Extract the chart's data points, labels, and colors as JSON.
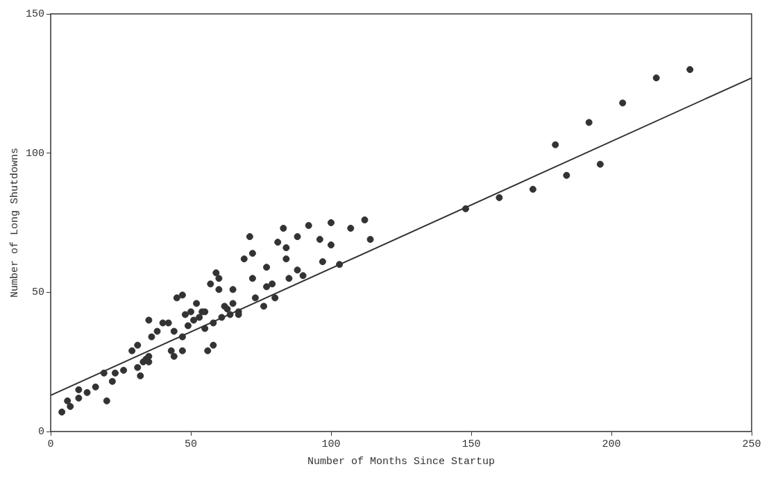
{
  "chart_data": {
    "type": "scatter",
    "xlabel": "Number of Months Since Startup",
    "ylabel": "Number of Long Shutdowns",
    "xlim": [
      0,
      250
    ],
    "xticks": [
      0,
      50,
      100,
      150,
      200,
      250
    ],
    "ylim": [
      0,
      150
    ],
    "yticks": [
      0,
      50,
      100,
      150
    ],
    "legend": false,
    "series": [
      {
        "marker": "circle",
        "color": "#333333",
        "x": [
          4,
          6,
          7,
          10,
          10,
          13,
          16,
          19,
          20,
          22,
          23,
          26,
          29,
          31,
          31,
          32,
          33,
          34,
          35,
          35,
          35,
          36,
          38,
          40,
          42,
          43,
          44,
          44,
          45,
          47,
          47,
          47,
          48,
          49,
          50,
          51,
          52,
          53,
          54,
          55,
          55,
          56,
          57,
          58,
          58,
          59,
          60,
          60,
          61,
          62,
          63,
          64,
          65,
          65,
          67,
          67,
          69,
          71,
          72,
          72,
          73,
          76,
          77,
          77,
          79,
          80,
          81,
          83,
          84,
          84,
          85,
          88,
          88,
          90,
          92,
          96,
          97,
          100,
          100,
          103,
          107,
          112,
          114,
          148,
          160,
          172,
          180,
          184,
          192,
          196,
          204,
          216,
          228
        ],
        "values": [
          7,
          11,
          9,
          12,
          15,
          14,
          16,
          21,
          11,
          18,
          21,
          22,
          29,
          31,
          23,
          20,
          25,
          26,
          27,
          25,
          40,
          34,
          36,
          39,
          39,
          29,
          27,
          36,
          48,
          49,
          34,
          29,
          42,
          38,
          43,
          40,
          46,
          41,
          43,
          43,
          37,
          29,
          53,
          31,
          39,
          57,
          55,
          51,
          41,
          45,
          44,
          42,
          51,
          46,
          43,
          42,
          62,
          70,
          55,
          64,
          48,
          45,
          59,
          52,
          53,
          48,
          68,
          73,
          66,
          62,
          55,
          58,
          70,
          56,
          74,
          69,
          61,
          67,
          75,
          60,
          73,
          76,
          69,
          80,
          84,
          87,
          103,
          92,
          111,
          96,
          118,
          127,
          130
        ]
      },
      {
        "type": "line",
        "marker": "none",
        "color": "#333333",
        "x": [
          0,
          250
        ],
        "values": [
          13,
          127
        ]
      }
    ]
  }
}
